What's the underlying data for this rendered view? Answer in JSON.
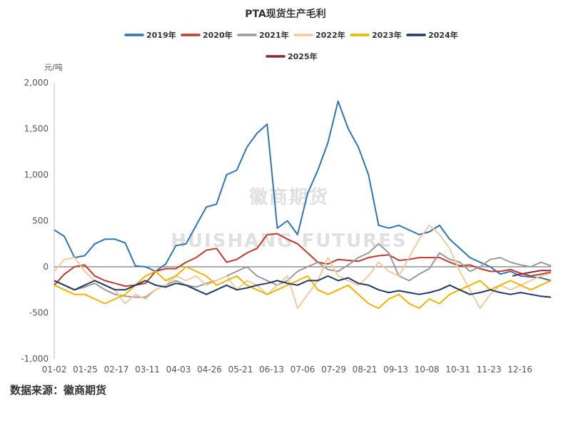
{
  "chart_data": {
    "type": "line",
    "title": "PTA现货生产毛利",
    "ylabel": "元/吨",
    "ylim": [
      -1000,
      2000
    ],
    "yticks": [
      -1000,
      -500,
      0,
      500,
      1000,
      1500,
      2000
    ],
    "ytick_labels": [
      "-1,000",
      "-500",
      "0",
      "500",
      "1,000",
      "1,500",
      "2,000"
    ],
    "xticks": [
      "01-02",
      "01-25",
      "02-17",
      "03-11",
      "04-03",
      "04-26",
      "05-21",
      "06-13",
      "07-06",
      "07-29",
      "08-21",
      "09-13",
      "10-08",
      "10-31",
      "11-23",
      "12-16"
    ],
    "grid": false,
    "legend_position": "top",
    "series": [
      {
        "name": "2019年",
        "color": "#2e75b6",
        "points": [
          [
            0,
            400
          ],
          [
            0.5,
            330
          ],
          [
            1,
            100
          ],
          [
            1.5,
            120
          ],
          [
            2,
            250
          ],
          [
            2.5,
            300
          ],
          [
            3,
            300
          ],
          [
            3.5,
            260
          ],
          [
            4,
            10
          ],
          [
            4.5,
            0
          ],
          [
            5,
            -50
          ],
          [
            5.5,
            30
          ],
          [
            6,
            230
          ],
          [
            6.5,
            250
          ],
          [
            7,
            450
          ],
          [
            7.5,
            650
          ],
          [
            8,
            680
          ],
          [
            8.5,
            1000
          ],
          [
            9,
            1050
          ],
          [
            9.5,
            1300
          ],
          [
            10,
            1450
          ],
          [
            10.5,
            1550
          ],
          [
            11,
            420
          ],
          [
            11.5,
            500
          ],
          [
            12,
            350
          ],
          [
            12.5,
            800
          ],
          [
            13,
            1050
          ],
          [
            13.5,
            1350
          ],
          [
            14,
            1800
          ],
          [
            14.5,
            1500
          ],
          [
            15,
            1300
          ],
          [
            15.5,
            1000
          ],
          [
            16,
            450
          ],
          [
            16.5,
            420
          ],
          [
            17,
            450
          ],
          [
            17.5,
            400
          ],
          [
            18,
            350
          ],
          [
            18.5,
            380
          ],
          [
            19,
            450
          ],
          [
            19.5,
            300
          ],
          [
            20,
            200
          ],
          [
            20.5,
            100
          ],
          [
            21,
            50
          ],
          [
            21.5,
            0
          ],
          [
            22,
            -80
          ],
          [
            22.5,
            -50
          ],
          [
            23,
            -100
          ],
          [
            23.5,
            -110
          ],
          [
            24,
            -120
          ],
          [
            24.5,
            -150
          ]
        ]
      },
      {
        "name": "2020年",
        "color": "#c0392b",
        "points": [
          [
            0,
            -200
          ],
          [
            0.5,
            -80
          ],
          [
            1,
            0
          ],
          [
            1.5,
            20
          ],
          [
            2,
            -100
          ],
          [
            2.5,
            -150
          ],
          [
            3,
            -180
          ],
          [
            3.5,
            -210
          ],
          [
            4,
            -200
          ],
          [
            4.5,
            -180
          ],
          [
            5,
            -50
          ],
          [
            5.5,
            -20
          ],
          [
            6,
            -20
          ],
          [
            6.5,
            50
          ],
          [
            7,
            100
          ],
          [
            7.5,
            180
          ],
          [
            8,
            200
          ],
          [
            8.5,
            50
          ],
          [
            9,
            80
          ],
          [
            9.5,
            150
          ],
          [
            10,
            200
          ],
          [
            10.5,
            350
          ],
          [
            11,
            360
          ],
          [
            11.5,
            300
          ],
          [
            12,
            250
          ],
          [
            12.5,
            150
          ],
          [
            13,
            50
          ],
          [
            13.5,
            30
          ],
          [
            14,
            80
          ],
          [
            14.5,
            70
          ],
          [
            15,
            60
          ],
          [
            15.5,
            100
          ],
          [
            16,
            120
          ],
          [
            16.5,
            130
          ],
          [
            17,
            70
          ],
          [
            17.5,
            80
          ],
          [
            18,
            100
          ],
          [
            18.5,
            100
          ],
          [
            19,
            100
          ],
          [
            19.5,
            50
          ],
          [
            20,
            10
          ],
          [
            20.5,
            20
          ],
          [
            21,
            -20
          ],
          [
            21.5,
            -50
          ],
          [
            22,
            -50
          ],
          [
            22.5,
            -30
          ],
          [
            23,
            -70
          ],
          [
            23.5,
            -100
          ],
          [
            24,
            -80
          ],
          [
            24.5,
            -60
          ]
        ]
      },
      {
        "name": "2021年",
        "color": "#999999",
        "points": [
          [
            0,
            -150
          ],
          [
            0.5,
            -200
          ],
          [
            1,
            -250
          ],
          [
            1.5,
            -220
          ],
          [
            2,
            -180
          ],
          [
            2.5,
            -250
          ],
          [
            3,
            -300
          ],
          [
            3.5,
            -320
          ],
          [
            4,
            -330
          ],
          [
            4.5,
            -330
          ],
          [
            5,
            -250
          ],
          [
            5.5,
            -200
          ],
          [
            6,
            -150
          ],
          [
            6.5,
            -200
          ],
          [
            7,
            -220
          ],
          [
            7.5,
            -180
          ],
          [
            8,
            -150
          ],
          [
            8.5,
            -100
          ],
          [
            9,
            -50
          ],
          [
            9.5,
            0
          ],
          [
            10,
            -100
          ],
          [
            10.5,
            -150
          ],
          [
            11,
            -200
          ],
          [
            11.5,
            -150
          ],
          [
            12,
            -50
          ],
          [
            12.5,
            0
          ],
          [
            13,
            50
          ],
          [
            13.5,
            -30
          ],
          [
            14,
            -50
          ],
          [
            14.5,
            20
          ],
          [
            15,
            100
          ],
          [
            15.5,
            150
          ],
          [
            16,
            250
          ],
          [
            16.5,
            150
          ],
          [
            17,
            -100
          ],
          [
            17.5,
            -150
          ],
          [
            18,
            -80
          ],
          [
            18.5,
            -20
          ],
          [
            19,
            150
          ],
          [
            19.5,
            80
          ],
          [
            20,
            50
          ],
          [
            20.5,
            -50
          ],
          [
            21,
            0
          ],
          [
            21.5,
            80
          ],
          [
            22,
            100
          ],
          [
            22.5,
            50
          ],
          [
            23,
            20
          ],
          [
            23.5,
            0
          ],
          [
            24,
            50
          ],
          [
            24.5,
            10
          ]
        ]
      },
      {
        "name": "2022年",
        "color": "#f5c99b",
        "points": [
          [
            0,
            -50
          ],
          [
            0.5,
            80
          ],
          [
            1,
            100
          ],
          [
            1.5,
            -50
          ],
          [
            2,
            -150
          ],
          [
            2.5,
            -200
          ],
          [
            3,
            -250
          ],
          [
            3.5,
            -400
          ],
          [
            4,
            -300
          ],
          [
            4.5,
            -350
          ],
          [
            5,
            -250
          ],
          [
            5.5,
            -200
          ],
          [
            6,
            -100
          ],
          [
            6.5,
            -150
          ],
          [
            7,
            -100
          ],
          [
            7.5,
            -200
          ],
          [
            8,
            -150
          ],
          [
            8.5,
            -100
          ],
          [
            9,
            -250
          ],
          [
            9.5,
            -150
          ],
          [
            10,
            -200
          ],
          [
            10.5,
            -300
          ],
          [
            11,
            -200
          ],
          [
            11.5,
            -100
          ],
          [
            12,
            -450
          ],
          [
            12.5,
            -300
          ],
          [
            13,
            -150
          ],
          [
            13.5,
            100
          ],
          [
            14,
            -100
          ],
          [
            14.5,
            -150
          ],
          [
            15,
            -200
          ],
          [
            15.5,
            -100
          ],
          [
            16,
            50
          ],
          [
            16.5,
            -50
          ],
          [
            17,
            -100
          ],
          [
            17.5,
            100
          ],
          [
            18,
            300
          ],
          [
            18.5,
            450
          ],
          [
            19,
            350
          ],
          [
            19.5,
            200
          ],
          [
            20,
            -50
          ],
          [
            20.5,
            -250
          ],
          [
            21,
            -450
          ],
          [
            21.5,
            -300
          ],
          [
            22,
            -200
          ],
          [
            22.5,
            -250
          ],
          [
            23,
            -200
          ],
          [
            23.5,
            -150
          ],
          [
            24,
            -100
          ],
          [
            24.5,
            -70
          ]
        ]
      },
      {
        "name": "2023年",
        "color": "#f0b400",
        "points": [
          [
            0,
            -200
          ],
          [
            0.5,
            -250
          ],
          [
            1,
            -300
          ],
          [
            1.5,
            -300
          ],
          [
            2,
            -350
          ],
          [
            2.5,
            -400
          ],
          [
            3,
            -350
          ],
          [
            3.5,
            -300
          ],
          [
            4,
            -200
          ],
          [
            4.5,
            -100
          ],
          [
            5,
            -50
          ],
          [
            5.5,
            -150
          ],
          [
            6,
            -100
          ],
          [
            6.5,
            0
          ],
          [
            7,
            -50
          ],
          [
            7.5,
            -100
          ],
          [
            8,
            -200
          ],
          [
            8.5,
            -150
          ],
          [
            9,
            -100
          ],
          [
            9.5,
            -200
          ],
          [
            10,
            -250
          ],
          [
            10.5,
            -300
          ],
          [
            11,
            -250
          ],
          [
            11.5,
            -200
          ],
          [
            12,
            -150
          ],
          [
            12.5,
            -100
          ],
          [
            13,
            -250
          ],
          [
            13.5,
            -300
          ],
          [
            14,
            -250
          ],
          [
            14.5,
            -200
          ],
          [
            15,
            -300
          ],
          [
            15.5,
            -400
          ],
          [
            16,
            -450
          ],
          [
            16.5,
            -350
          ],
          [
            17,
            -300
          ],
          [
            17.5,
            -400
          ],
          [
            18,
            -450
          ],
          [
            18.5,
            -350
          ],
          [
            19,
            -400
          ],
          [
            19.5,
            -300
          ],
          [
            20,
            -250
          ],
          [
            20.5,
            -200
          ],
          [
            21,
            -150
          ],
          [
            21.5,
            -250
          ],
          [
            22,
            -200
          ],
          [
            22.5,
            -150
          ],
          [
            23,
            -200
          ],
          [
            23.5,
            -250
          ],
          [
            24,
            -200
          ],
          [
            24.5,
            -150
          ]
        ]
      },
      {
        "name": "2024年",
        "color": "#1f3864",
        "points": [
          [
            0,
            -150
          ],
          [
            0.5,
            -200
          ],
          [
            1,
            -250
          ],
          [
            1.5,
            -200
          ],
          [
            2,
            -150
          ],
          [
            2.5,
            -200
          ],
          [
            3,
            -250
          ],
          [
            3.5,
            -250
          ],
          [
            4,
            -200
          ],
          [
            4.5,
            -150
          ],
          [
            5,
            -200
          ],
          [
            5.5,
            -220
          ],
          [
            6,
            -180
          ],
          [
            6.5,
            -200
          ],
          [
            7,
            -250
          ],
          [
            7.5,
            -300
          ],
          [
            8,
            -250
          ],
          [
            8.5,
            -200
          ],
          [
            9,
            -250
          ],
          [
            9.5,
            -230
          ],
          [
            10,
            -200
          ],
          [
            10.5,
            -180
          ],
          [
            11,
            -150
          ],
          [
            11.5,
            -180
          ],
          [
            12,
            -200
          ],
          [
            12.5,
            -150
          ],
          [
            13,
            -150
          ],
          [
            13.5,
            -100
          ],
          [
            14,
            -150
          ],
          [
            14.5,
            -120
          ],
          [
            15,
            -180
          ],
          [
            15.5,
            -200
          ],
          [
            16,
            -250
          ],
          [
            16.5,
            -280
          ],
          [
            17,
            -260
          ],
          [
            17.5,
            -280
          ],
          [
            18,
            -300
          ],
          [
            18.5,
            -280
          ],
          [
            19,
            -250
          ],
          [
            19.5,
            -200
          ],
          [
            20,
            -250
          ],
          [
            20.5,
            -300
          ],
          [
            21,
            -280
          ],
          [
            21.5,
            -250
          ],
          [
            22,
            -280
          ],
          [
            22.5,
            -300
          ],
          [
            23,
            -280
          ],
          [
            23.5,
            -300
          ],
          [
            24,
            -320
          ],
          [
            24.5,
            -330
          ]
        ]
      },
      {
        "name": "2025年",
        "color": "#8b2332",
        "points": [
          [
            22.6,
            -100
          ],
          [
            23,
            -80
          ],
          [
            23.5,
            -60
          ],
          [
            24,
            -40
          ],
          [
            24.5,
            -40
          ]
        ]
      }
    ]
  },
  "watermark": {
    "cn": "徽商期货",
    "en": "HUISHANG FUTURES"
  },
  "source": "数据来源：徽商期货"
}
